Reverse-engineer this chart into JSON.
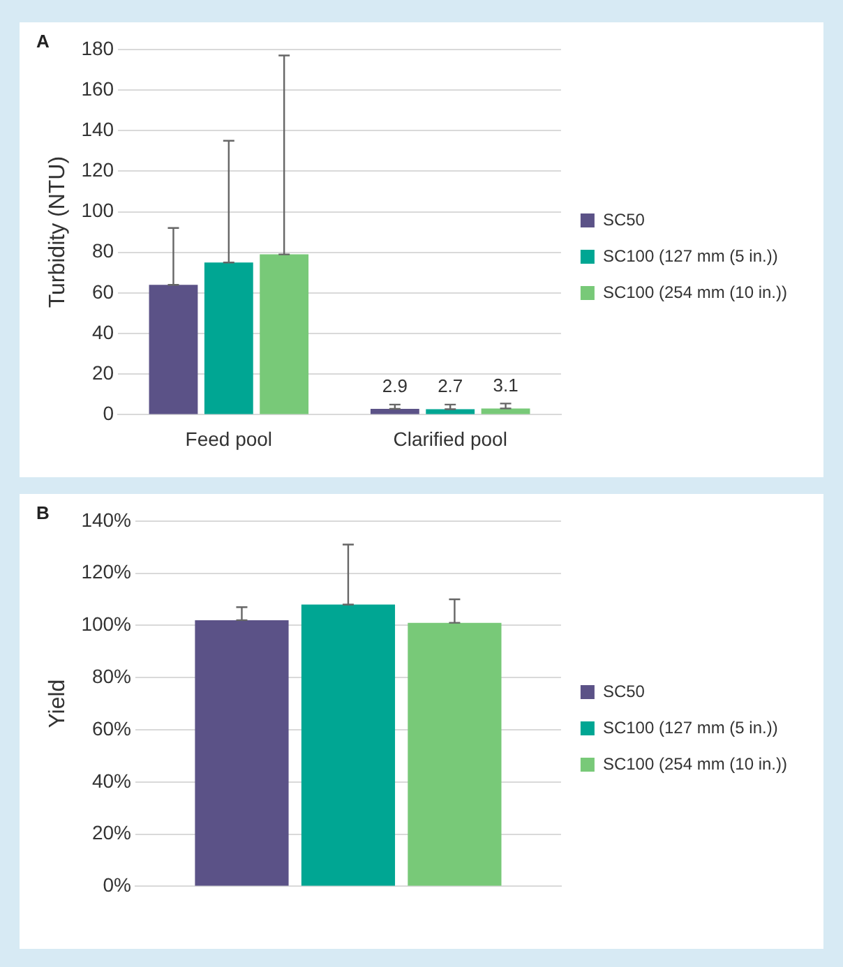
{
  "chart_data": [
    {
      "type": "bar",
      "title": "A",
      "ylabel": "Turbidity (NTU)",
      "categories": [
        "Feed pool",
        "Clarified pool"
      ],
      "ylim": [
        0,
        180
      ],
      "yticks": [
        0,
        20,
        40,
        60,
        80,
        100,
        120,
        140,
        160,
        180
      ],
      "grid": "y",
      "legend": "right",
      "series": [
        {
          "name": "SC50",
          "color": "#5b5287",
          "values": [
            64,
            2.9
          ],
          "errors": [
            [
              64,
              92
            ],
            [
              2.9,
              5
            ]
          ],
          "value_labels": [
            null,
            "2.9"
          ]
        },
        {
          "name": "SC100 (127 mm (5 in.))",
          "color": "#00a693",
          "values": [
            75,
            2.7
          ],
          "errors": [
            [
              75,
              135
            ],
            [
              2.7,
              5
            ]
          ],
          "value_labels": [
            null,
            "2.7"
          ]
        },
        {
          "name": "SC100 (254 mm (10 in.))",
          "color": "#78c978",
          "values": [
            79,
            3.1
          ],
          "errors": [
            [
              79,
              177
            ],
            [
              3.1,
              5.5
            ]
          ],
          "value_labels": [
            null,
            "3.1"
          ]
        }
      ]
    },
    {
      "type": "bar",
      "title": "B",
      "ylabel": "Yield",
      "categories": [
        null
      ],
      "ylim": [
        0,
        140
      ],
      "yticks": [
        {
          "value": 0,
          "label": "0%"
        },
        {
          "value": 20,
          "label": "20%"
        },
        {
          "value": 40,
          "label": "40%"
        },
        {
          "value": 60,
          "label": "60%"
        },
        {
          "value": 80,
          "label": "80%"
        },
        {
          "value": 100,
          "label": "100%"
        },
        {
          "value": 120,
          "label": "120%"
        },
        {
          "value": 140,
          "label": "140%"
        }
      ],
      "grid": "y",
      "legend": "right",
      "series": [
        {
          "name": "SC50",
          "color": "#5b5287",
          "values": [
            102
          ],
          "errors": [
            [
              102,
              107
            ]
          ]
        },
        {
          "name": "SC100 (127 mm (5 in.))",
          "color": "#00a693",
          "values": [
            108
          ],
          "errors": [
            [
              108,
              131
            ]
          ]
        },
        {
          "name": "SC100 (254 mm (10 in.))",
          "color": "#78c978",
          "values": [
            101
          ],
          "errors": [
            [
              101,
              110
            ]
          ]
        }
      ]
    }
  ]
}
